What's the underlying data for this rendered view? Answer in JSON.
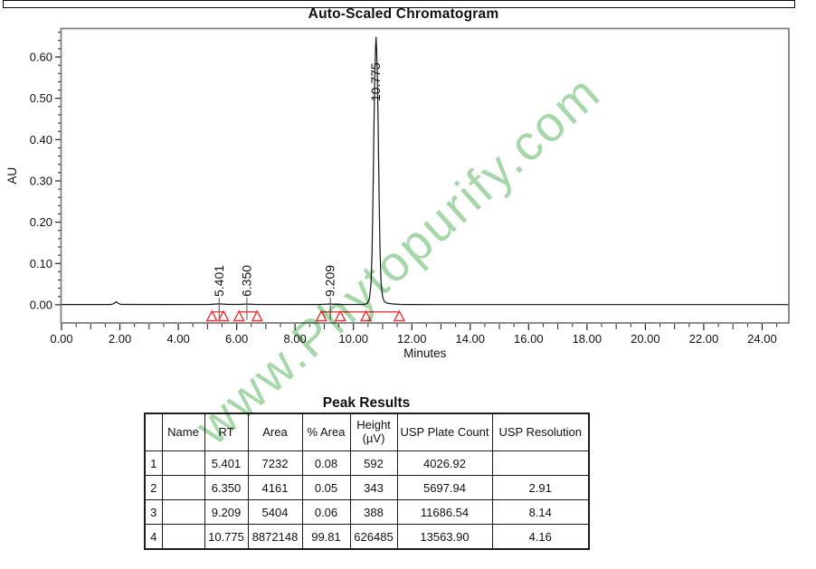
{
  "page": {
    "watermark": "www.Phytopurify.com"
  },
  "chart_data": {
    "type": "line",
    "title": "Auto-Scaled Chromatogram",
    "xlabel": "Minutes",
    "ylabel": "AU",
    "xlim": [
      0,
      24.9
    ],
    "ylim": [
      -0.044,
      0.669
    ],
    "grid": false,
    "x_tick_values": [
      0,
      2,
      4,
      6,
      8,
      10,
      12,
      14,
      16,
      18,
      20,
      22,
      24
    ],
    "x_tick_labels": [
      "0.00",
      "2.00",
      "4.00",
      "6.00",
      "8.00",
      "10.00",
      "12.00",
      "14.00",
      "16.00",
      "18.00",
      "20.00",
      "22.00",
      "24.00"
    ],
    "x_minor_step": 0.5,
    "y_tick_values": [
      0.0,
      0.1,
      0.2,
      0.3,
      0.4,
      0.5,
      0.6
    ],
    "y_tick_labels": [
      "0.00",
      "0.10",
      "0.20",
      "0.30",
      "0.40",
      "0.50",
      "0.60"
    ],
    "y_minor_step": 0.02,
    "trace_color": "#141414",
    "marker_color": "#f23333",
    "peak_line_color": "#6e6e6e",
    "border_color": "#808080",
    "trace": [
      [
        0,
        0.0006
      ],
      [
        1.7,
        0.0006
      ],
      [
        1.8,
        0.0028
      ],
      [
        1.87,
        0.0078
      ],
      [
        1.94,
        0.0035
      ],
      [
        2.03,
        0.001
      ],
      [
        3.5,
        0.0006
      ],
      [
        5.1,
        0.0008
      ],
      [
        5.4,
        0.0022
      ],
      [
        5.7,
        0.0008
      ],
      [
        6.1,
        0.0009
      ],
      [
        6.35,
        0.0018
      ],
      [
        6.62,
        0.0008
      ],
      [
        8.8,
        0.0006
      ],
      [
        9.21,
        0.0018
      ],
      [
        9.6,
        0.0006
      ],
      [
        10.3,
        0.0008
      ],
      [
        10.4,
        0.0012
      ],
      [
        10.48,
        0.004
      ],
      [
        10.55,
        0.015
      ],
      [
        10.6,
        0.05
      ],
      [
        10.64,
        0.13
      ],
      [
        10.67,
        0.26
      ],
      [
        10.7,
        0.42
      ],
      [
        10.73,
        0.55
      ],
      [
        10.755,
        0.62
      ],
      [
        10.775,
        0.648
      ],
      [
        10.795,
        0.62
      ],
      [
        10.82,
        0.55
      ],
      [
        10.85,
        0.42
      ],
      [
        10.88,
        0.26
      ],
      [
        10.91,
        0.13
      ],
      [
        10.95,
        0.05
      ],
      [
        11.0,
        0.018
      ],
      [
        11.06,
        0.008
      ],
      [
        11.15,
        0.004
      ],
      [
        11.35,
        0.002
      ],
      [
        11.6,
        0.001
      ],
      [
        12.0,
        0.0007
      ],
      [
        13.0,
        0.0005
      ],
      [
        24.9,
        0.0005
      ]
    ],
    "peaks": [
      {
        "label": "5.401",
        "rt": 5.401,
        "start": 5.15,
        "end": 5.55,
        "major": false
      },
      {
        "label": "6.350",
        "rt": 6.35,
        "start": 6.08,
        "end": 6.7,
        "major": false
      },
      {
        "label": "9.209",
        "rt": 9.209,
        "start": 8.9,
        "end": 9.55,
        "major": false
      },
      {
        "label": "10.775",
        "rt": 10.775,
        "start": 10.43,
        "end": 11.57,
        "major": true
      }
    ],
    "baseline_segments": [
      [
        5.15,
        5.55
      ],
      [
        6.08,
        6.7
      ],
      [
        8.9,
        11.57
      ]
    ]
  },
  "table": {
    "title": "Peak Results",
    "columns": [
      "",
      "Name",
      "RT",
      "Area",
      "% Area",
      "Height\n(µV)",
      "USP Plate Count",
      "USP Resolution"
    ],
    "rows": [
      [
        "1",
        "",
        "5.401",
        "7232",
        "0.08",
        "592",
        "4026.92",
        ""
      ],
      [
        "2",
        "",
        "6.350",
        "4161",
        "0.05",
        "343",
        "5697.94",
        "2.91"
      ],
      [
        "3",
        "",
        "9.209",
        "5404",
        "0.06",
        "388",
        "11686.54",
        "8.14"
      ],
      [
        "4",
        "",
        "10.775",
        "8872148",
        "99.81",
        "626485",
        "13563.90",
        "4.16"
      ]
    ]
  }
}
